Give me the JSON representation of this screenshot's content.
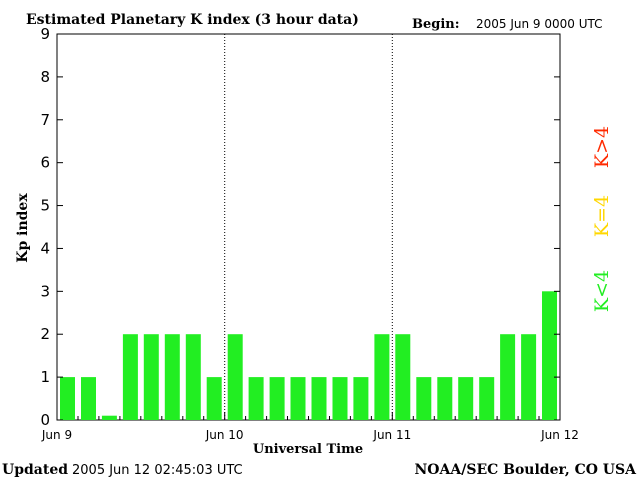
{
  "header": {
    "title": "Estimated Planetary K index (3 hour data)",
    "begin_label": "Begin:",
    "begin_value": "2005 Jun 9 0000 UTC"
  },
  "footer": {
    "updated_label": "Updated",
    "updated_value": "2005 Jun 12 02:45:03 UTC",
    "source": "NOAA/SEC Boulder, CO USA"
  },
  "legend": {
    "items": [
      {
        "label": "K>4",
        "color": "#ff2a00"
      },
      {
        "label": "K=4",
        "color": "#ffd700"
      },
      {
        "label": "K<4",
        "color": "#22ee22"
      }
    ]
  },
  "chart_data": {
    "type": "bar",
    "title": "Estimated Planetary K index (3 hour data)",
    "xlabel": "Universal Time",
    "ylabel": "Kp index",
    "ylim": [
      0,
      9
    ],
    "yticks": [
      "0",
      "1",
      "2",
      "3",
      "4",
      "5",
      "6",
      "7",
      "8",
      "9"
    ],
    "xtick_labels": [
      "Jun 9",
      "Jun 10",
      "Jun 11",
      "Jun 12"
    ],
    "day_dividers": [
      "Jun 10",
      "Jun 11"
    ],
    "bar_color": "#22ee22",
    "series": [
      {
        "values": [
          1,
          1,
          0.1,
          2,
          2,
          2,
          2,
          1,
          2,
          1,
          1,
          1,
          1,
          1,
          1,
          2,
          2,
          1,
          1,
          1,
          1,
          2,
          2,
          3
        ]
      }
    ]
  }
}
